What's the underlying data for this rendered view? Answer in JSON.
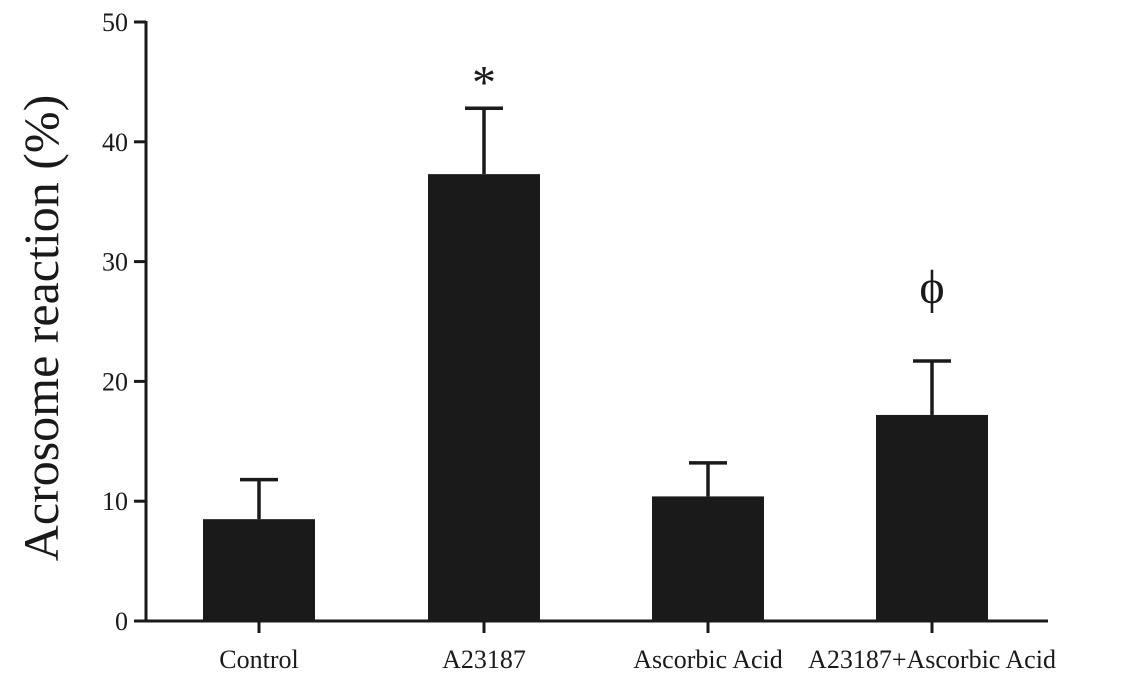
{
  "chart_data": {
    "type": "bar",
    "categories": [
      "Control",
      "A23187",
      "Ascorbic Acid",
      "A23187+Ascorbic Acid"
    ],
    "values": [
      8.5,
      37.3,
      10.4,
      17.2
    ],
    "errors": [
      3.3,
      5.5,
      2.8,
      4.5
    ],
    "annotations": [
      "",
      "*",
      "",
      "ϕ"
    ],
    "ylabel": "Acrosome reaction (%)",
    "xlabel": "",
    "ylim": [
      0,
      50
    ],
    "yticks": [
      0,
      10,
      20,
      30,
      40,
      50
    ],
    "bar_color": "#1a1a1a",
    "grid": false,
    "legend": "none"
  }
}
